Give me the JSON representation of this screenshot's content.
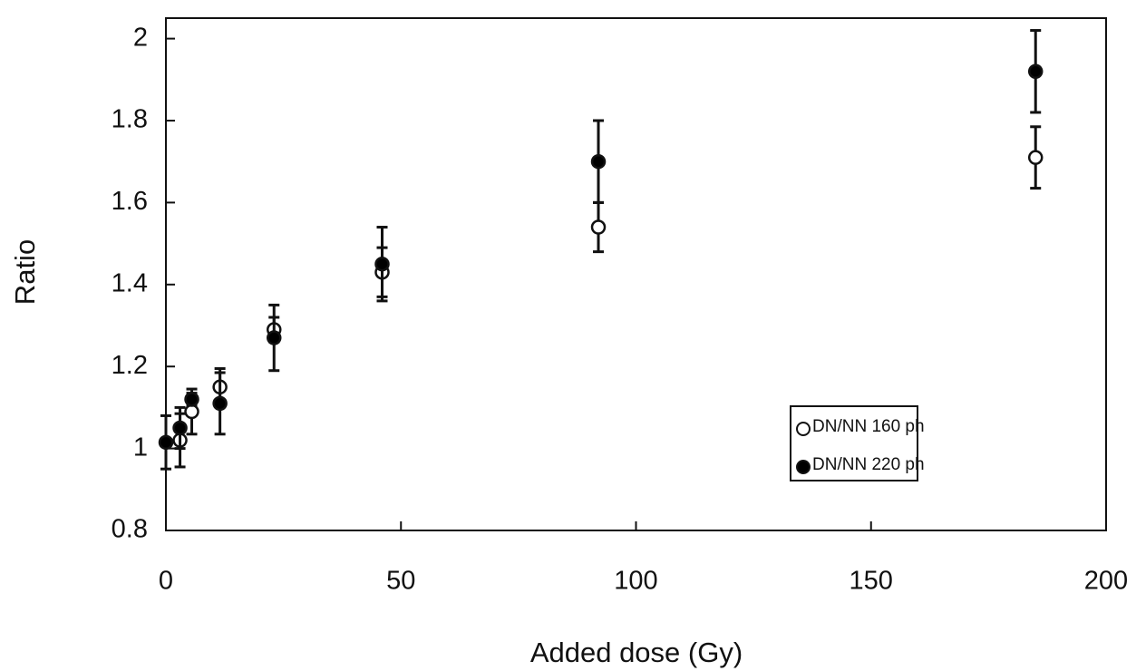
{
  "chart_data": {
    "type": "scatter",
    "xlabel": "Added dose (Gy)",
    "ylabel": "Ratio",
    "xlim": [
      0,
      200
    ],
    "xticks": [
      0,
      50,
      100,
      150,
      200
    ],
    "ylim": [
      0.8,
      2.05
    ],
    "yticks": [
      0.8,
      1,
      1.2,
      1.4,
      1.6,
      1.8,
      2
    ],
    "grid": false,
    "legend": "lower right",
    "series": [
      {
        "name": "DN/NN 160 ph",
        "color": "#ffffff",
        "marker": "open",
        "x": [
          3,
          5.5,
          11.5,
          23,
          46,
          92,
          185
        ],
        "values": [
          1.02,
          1.09,
          1.15,
          1.29,
          1.43,
          1.54,
          1.71
        ],
        "errors": [
          0.065,
          0.055,
          0.045,
          0.03,
          0.06,
          0.06,
          0.075
        ]
      },
      {
        "name": "DN/NN 220 ph",
        "color": "#000000",
        "marker": "filled",
        "x": [
          0,
          3,
          5.5,
          11.5,
          23,
          46,
          92,
          185
        ],
        "values": [
          1.015,
          1.05,
          1.12,
          1.11,
          1.27,
          1.45,
          1.7,
          1.92
        ],
        "errors": [
          0.065,
          0.05,
          0.015,
          0.075,
          0.08,
          0.09,
          0.1,
          0.1
        ]
      }
    ]
  }
}
